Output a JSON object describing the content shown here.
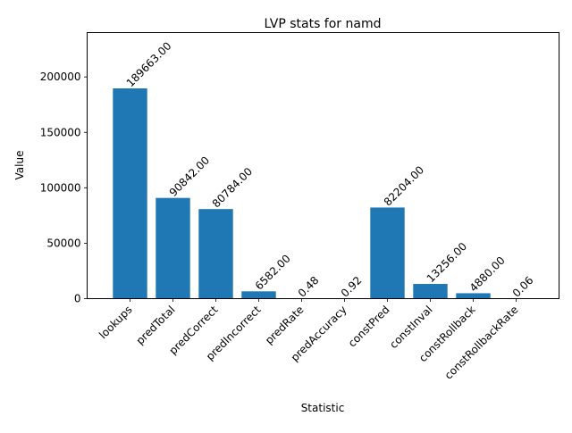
{
  "chart_data": {
    "type": "bar",
    "title": "LVP stats for namd",
    "xlabel": "Statistic",
    "ylabel": "Value",
    "categories": [
      "lookups",
      "predTotal",
      "predCorrect",
      "predIncorrect",
      "predRate",
      "predAccuracy",
      "constPred",
      "constInval",
      "constRollback",
      "constRollbackRate"
    ],
    "values": [
      189663,
      90842,
      80784,
      6582,
      0.48,
      0.92,
      82204,
      13256,
      4880,
      0.06
    ],
    "data_labels": [
      "189663.00",
      "90842.00",
      "80784.00",
      "6582.00",
      "0.48",
      "0.92",
      "82204.00",
      "13256.00",
      "4880.00",
      "0.06"
    ],
    "ylim": [
      0,
      240000
    ],
    "yticks": [
      0,
      50000,
      100000,
      150000,
      200000
    ],
    "ytick_labels": [
      "0",
      "50000",
      "100000",
      "150000",
      "200000"
    ],
    "bar_color": "#1f77b4",
    "grid": false,
    "legend": "none",
    "xtick_rotation": 45,
    "data_label_rotation": 45
  }
}
